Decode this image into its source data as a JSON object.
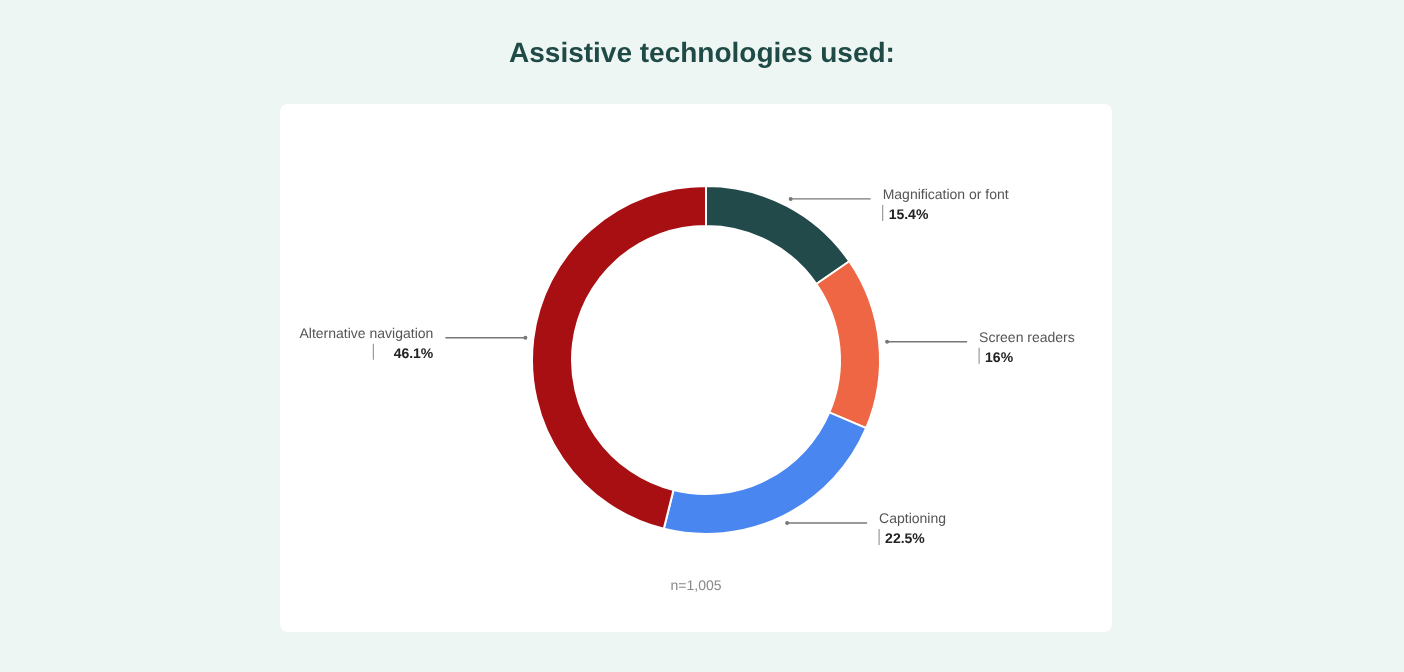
{
  "chart_data": {
    "type": "donut",
    "title": "Assistive technologies used:",
    "categories": [
      "Magnification or font",
      "Screen readers",
      "Captioning",
      "Alternative navigation"
    ],
    "values": [
      15.4,
      16,
      22.5,
      46.1
    ],
    "value_labels": [
      "15.4%",
      "16%",
      "22.5%",
      "46.1%"
    ],
    "colors": [
      "#234a4a",
      "#ee6644",
      "#4a86f0",
      "#a80f12"
    ],
    "annotations": [
      "n=1,005"
    ],
    "legend": false
  }
}
